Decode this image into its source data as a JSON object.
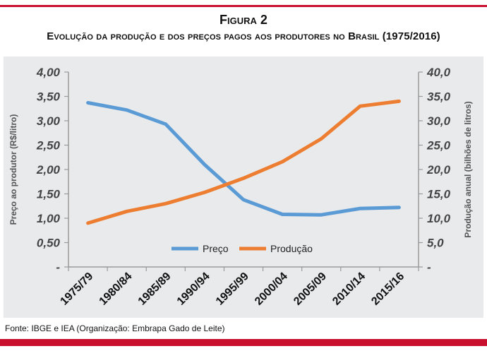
{
  "figure": {
    "label": "Figura 2",
    "title": "Evolução da produção e dos preços pagos aos produtores no Brasil (1975/2016)"
  },
  "source": "Fonte: IBGE e IEA (Organização: Embrapa Gado de Leite)",
  "colors": {
    "price": "#5b9bd5",
    "production": "#ed7d31",
    "accent": "#c8102e"
  },
  "chart_data": {
    "type": "line",
    "categories": [
      "1975/79",
      "1980/84",
      "1985/89",
      "1990/94",
      "1995/99",
      "2000/04",
      "2005/09",
      "2010/14",
      "2015/16"
    ],
    "series": [
      {
        "name": "Preço",
        "axis": "left",
        "values": [
          3.37,
          3.22,
          2.93,
          2.1,
          1.38,
          1.08,
          1.07,
          1.2,
          1.22
        ]
      },
      {
        "name": "Produção",
        "axis": "right",
        "values": [
          9.0,
          11.4,
          13.0,
          15.3,
          18.2,
          21.6,
          26.3,
          33.0,
          34.0
        ]
      }
    ],
    "ylabel": "Preço ao produtor (R$/litro)",
    "y2label": "Produção anual (bilhões de litros)",
    "ylim": [
      0,
      4
    ],
    "y2lim": [
      0,
      40
    ],
    "yticks": [
      "-",
      "0,50",
      "1,00",
      "1,50",
      "2,00",
      "2,50",
      "3,00",
      "3,50",
      "4,00"
    ],
    "y2ticks": [
      "-",
      "5,0",
      "10,0",
      "15,0",
      "20,0",
      "25,0",
      "30,0",
      "35,0",
      "40,0"
    ],
    "legend_position": "bottom-center",
    "grid": false
  }
}
